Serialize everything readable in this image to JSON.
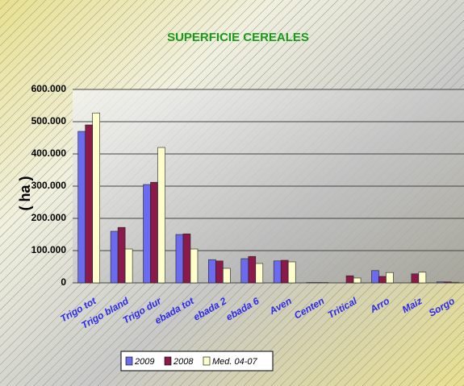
{
  "chart_data": {
    "type": "bar",
    "title": "SUPERFICIE CEREALES",
    "y_label": "( ha )",
    "categories": [
      "Trigo tot",
      "Trigo bland",
      "Trigo dur",
      "ebada tot",
      "ebada 2",
      "ebada 6",
      "Aven",
      "Centen",
      "Tritical",
      "Arro",
      "Maiz",
      "Sorgo"
    ],
    "series": [
      {
        "name": "2009",
        "color": "#6b6bf0",
        "values": [
          470000,
          160000,
          305000,
          150000,
          72000,
          75000,
          68000,
          1000,
          0,
          38000,
          0,
          3000
        ]
      },
      {
        "name": "2008",
        "color": "#8b1a4a",
        "values": [
          490000,
          172000,
          312000,
          152000,
          68000,
          82000,
          70000,
          1000,
          22000,
          20000,
          28000,
          3000
        ]
      },
      {
        "name": "Med. 04-07",
        "color": "#ffffcc",
        "values": [
          527000,
          105000,
          420000,
          105000,
          45000,
          60000,
          65000,
          1000,
          15000,
          32000,
          33000,
          2000
        ]
      }
    ],
    "ylim": [
      0,
      600000
    ],
    "yticks": [
      {
        "value": 0,
        "label": "0"
      },
      {
        "value": 100000,
        "label": "100.000"
      },
      {
        "value": 200000,
        "label": "200.000"
      },
      {
        "value": 300000,
        "label": "300.000"
      },
      {
        "value": 400000,
        "label": "400.000"
      },
      {
        "value": 500000,
        "label": "500.000"
      },
      {
        "value": 600000,
        "label": "600.000"
      }
    ],
    "grid": true,
    "legend": "bottom"
  }
}
